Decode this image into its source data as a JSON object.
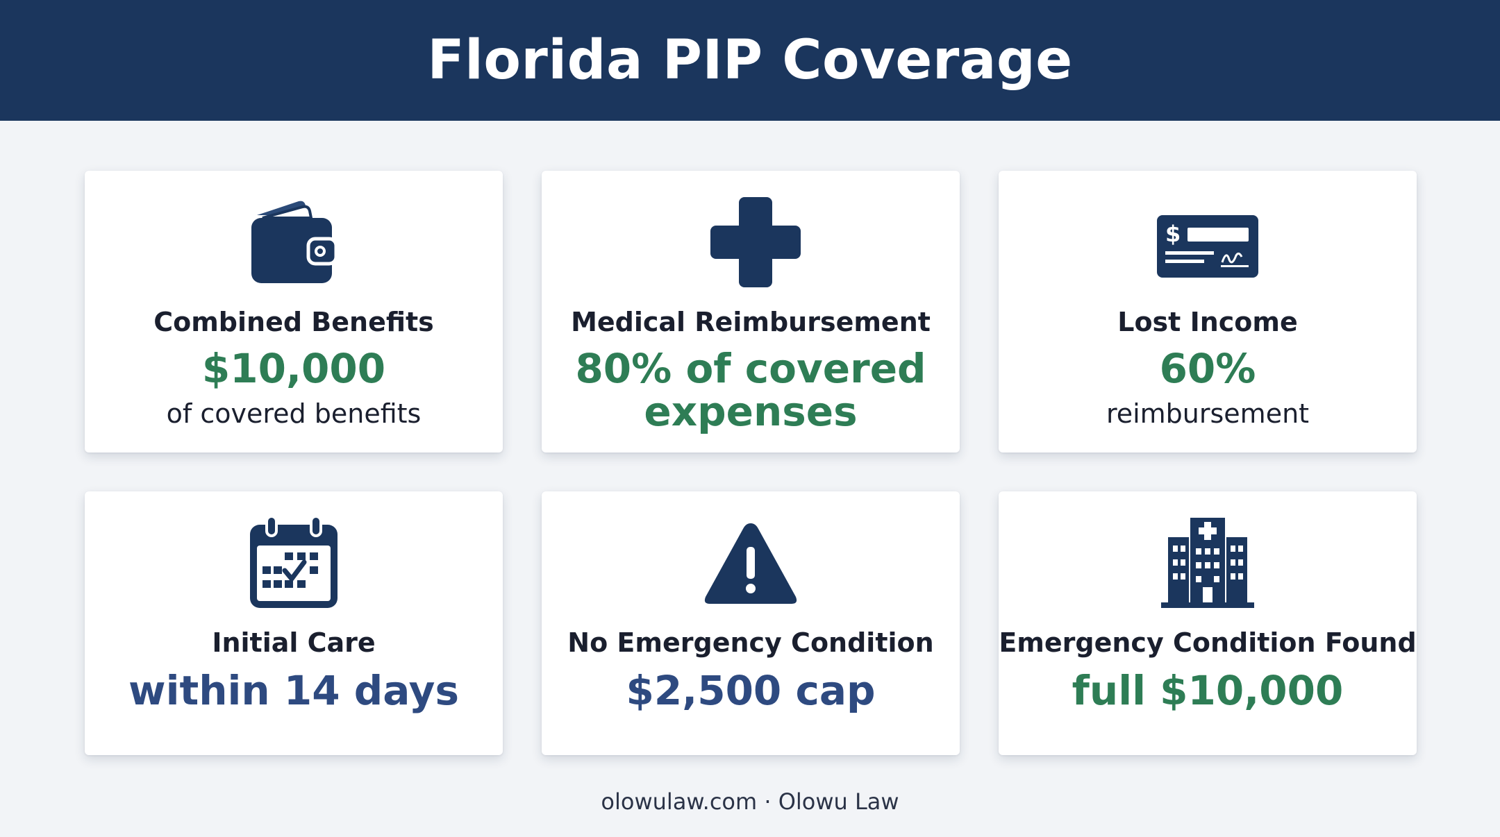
{
  "title": "Florida PIP Coverage",
  "colors": {
    "header_bg": "#1b365d",
    "accent_green": "#2e7d55",
    "accent_navy": "#2e4a80",
    "icon": "#1b365d"
  },
  "cards": [
    {
      "icon": "wallet-icon",
      "title": "Combined Benefits",
      "value": "$10,000",
      "value_color": "green",
      "subtitle": "of covered benefits"
    },
    {
      "icon": "medical-cross-icon",
      "title": "Medical Reimbursement",
      "value": "80% of covered expenses",
      "value_color": "green",
      "subtitle": ""
    },
    {
      "icon": "check-payment-icon",
      "title": "Lost Income",
      "value": "60%",
      "value_color": "green",
      "subtitle": "reimbursement"
    },
    {
      "icon": "calendar-icon",
      "title": "Initial Care",
      "value": "within 14 days",
      "value_color": "navy",
      "subtitle": ""
    },
    {
      "icon": "warning-icon",
      "title": "No Emergency Condition",
      "value": "$2,500 cap",
      "value_color": "navy",
      "subtitle": ""
    },
    {
      "icon": "hospital-icon",
      "title": "Emergency Condition Found",
      "value": "full $10,000",
      "value_color": "green",
      "subtitle": ""
    }
  ],
  "footer": "olowulaw.com · Olowu Law"
}
